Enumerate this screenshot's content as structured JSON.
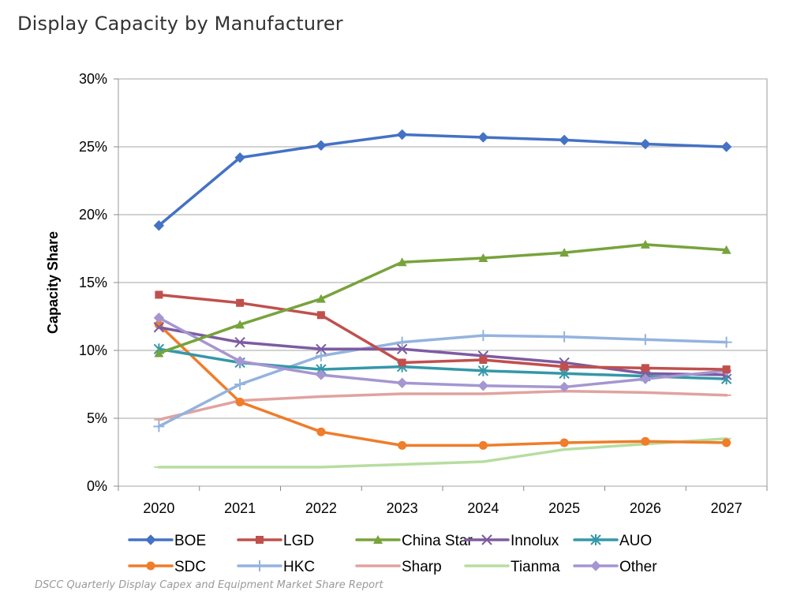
{
  "header": {
    "title": "Display Capacity by Manufacturer"
  },
  "footer": {
    "source": "DSCC Quarterly Display Capex and Equipment Market Share Report"
  },
  "chart_data": {
    "type": "line",
    "title": "Display Capacity by Manufacturer",
    "xlabel": "",
    "ylabel": "Capacity Share",
    "x": [
      "2020",
      "2021",
      "2022",
      "2023",
      "2024",
      "2025",
      "2026",
      "2027"
    ],
    "ylim": [
      0,
      30
    ],
    "yticks": [
      0,
      5,
      10,
      15,
      20,
      25,
      30
    ],
    "ytick_labels": [
      "0%",
      "5%",
      "10%",
      "15%",
      "20%",
      "25%",
      "30%"
    ],
    "grid": "horizontal",
    "legend_position": "bottom",
    "series": [
      {
        "name": "BOE",
        "color": "#4472C4",
        "marker": "diamond",
        "values": [
          19.2,
          24.2,
          25.1,
          25.9,
          25.7,
          25.5,
          25.2,
          25.0
        ]
      },
      {
        "name": "LGD",
        "color": "#C0504D",
        "marker": "square",
        "values": [
          14.1,
          13.5,
          12.6,
          9.1,
          9.3,
          8.8,
          8.7,
          8.6
        ]
      },
      {
        "name": "China Star",
        "color": "#77A33C",
        "marker": "triangle",
        "values": [
          9.8,
          11.9,
          13.8,
          16.5,
          16.8,
          17.2,
          17.8,
          17.4
        ]
      },
      {
        "name": "Innolux",
        "color": "#7E5BA1",
        "marker": "x",
        "values": [
          11.7,
          10.6,
          10.1,
          10.1,
          9.6,
          9.1,
          8.3,
          8.2
        ]
      },
      {
        "name": "AUO",
        "color": "#3498A8",
        "marker": "asterisk",
        "values": [
          10.1,
          9.1,
          8.6,
          8.8,
          8.5,
          8.3,
          8.1,
          7.9
        ]
      },
      {
        "name": "SDC",
        "color": "#EF7D2A",
        "marker": "circle",
        "values": [
          11.9,
          6.2,
          4.0,
          3.0,
          3.0,
          3.2,
          3.3,
          3.2
        ]
      },
      {
        "name": "HKC",
        "color": "#94B3DE",
        "marker": "plus",
        "values": [
          4.4,
          7.5,
          9.6,
          10.6,
          11.1,
          11.0,
          10.8,
          10.6
        ]
      },
      {
        "name": "Sharp",
        "color": "#E0A3A0",
        "marker": "dash",
        "values": [
          4.9,
          6.3,
          6.6,
          6.8,
          6.8,
          7.0,
          6.9,
          6.7
        ]
      },
      {
        "name": "Tianma",
        "color": "#B7DDA0",
        "marker": "dash",
        "values": [
          1.4,
          1.4,
          1.4,
          1.6,
          1.8,
          2.7,
          3.1,
          3.5
        ]
      },
      {
        "name": "Other",
        "color": "#A596D1",
        "marker": "diamond",
        "values": [
          12.4,
          9.2,
          8.2,
          7.6,
          7.4,
          7.3,
          7.9,
          8.5
        ]
      }
    ]
  }
}
